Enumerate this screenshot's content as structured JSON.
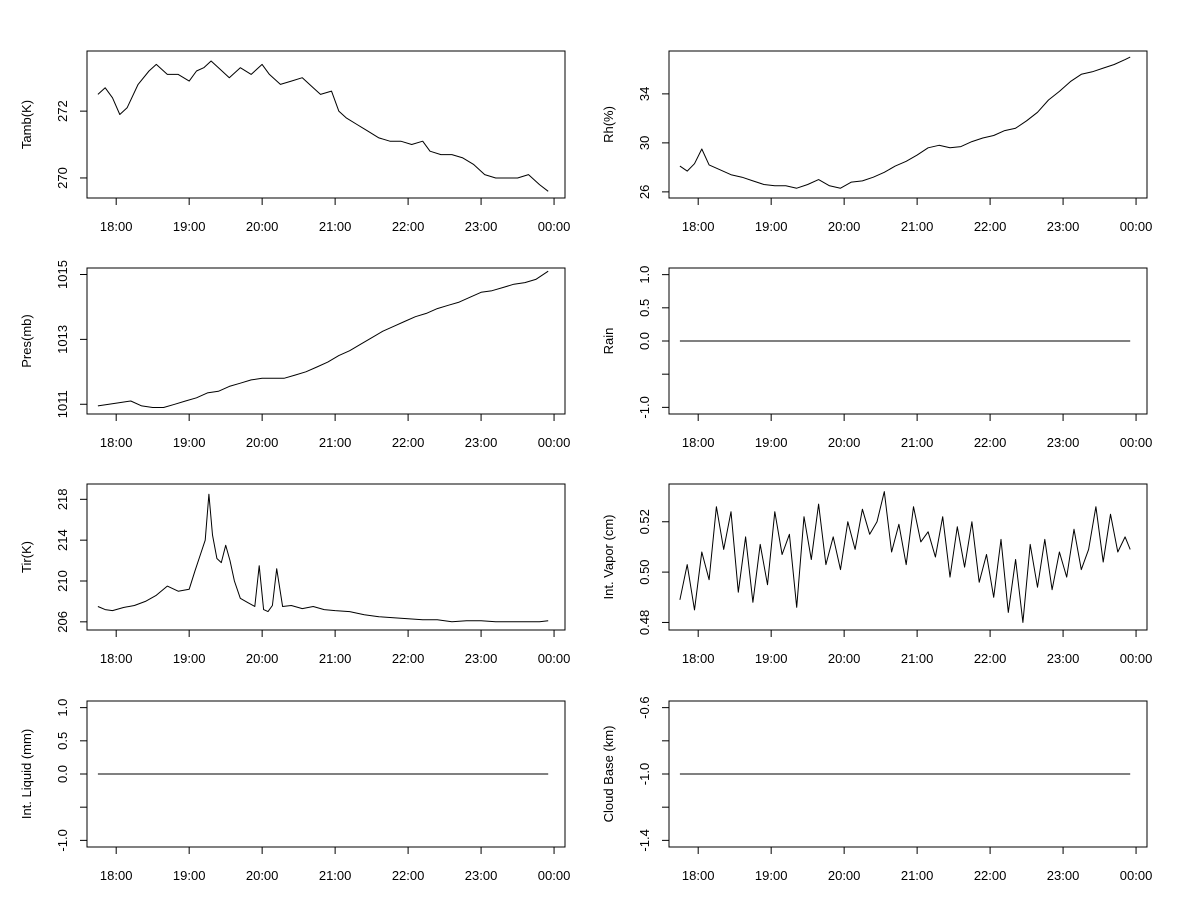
{
  "chart_data": [
    {
      "type": "line",
      "ylabel": "Tamb(K)",
      "xticks": [
        "18:00",
        "19:00",
        "20:00",
        "21:00",
        "22:00",
        "23:00",
        "00:00"
      ],
      "ylim": [
        269.4,
        273.8
      ],
      "yticks": [
        270,
        272
      ],
      "ytick_labels": [
        "270",
        "272"
      ],
      "series": [
        {
          "x_hours": [
            17.75,
            17.85,
            17.95,
            18.05,
            18.15,
            18.3,
            18.45,
            18.55,
            18.7,
            18.85,
            19.0,
            19.1,
            19.2,
            19.3,
            19.45,
            19.55,
            19.7,
            19.85,
            20.0,
            20.1,
            20.25,
            20.4,
            20.55,
            20.7,
            20.8,
            20.95,
            21.05,
            21.15,
            21.3,
            21.45,
            21.6,
            21.75,
            21.9,
            22.05,
            22.2,
            22.3,
            22.45,
            22.6,
            22.75,
            22.9,
            23.05,
            23.2,
            23.35,
            23.5,
            23.65,
            23.8,
            23.92
          ],
          "values": [
            272.5,
            272.7,
            272.4,
            271.9,
            272.1,
            272.8,
            273.2,
            273.4,
            273.1,
            273.1,
            272.9,
            273.2,
            273.3,
            273.5,
            273.2,
            273.0,
            273.3,
            273.1,
            273.4,
            273.1,
            272.8,
            272.9,
            273.0,
            272.7,
            272.5,
            272.6,
            272.0,
            271.8,
            271.6,
            271.4,
            271.2,
            271.1,
            271.1,
            271.0,
            271.1,
            270.8,
            270.7,
            270.7,
            270.6,
            270.4,
            270.1,
            270.0,
            270.0,
            270.0,
            270.1,
            269.8,
            269.6
          ]
        }
      ]
    },
    {
      "type": "line",
      "ylabel": "Rh(%)",
      "xticks": [
        "18:00",
        "19:00",
        "20:00",
        "21:00",
        "22:00",
        "23:00",
        "00:00"
      ],
      "ylim": [
        25.5,
        37.5
      ],
      "yticks": [
        26,
        30,
        34
      ],
      "ytick_labels": [
        "26",
        "30",
        "34"
      ],
      "series": [
        {
          "x_hours": [
            17.75,
            17.85,
            17.95,
            18.05,
            18.15,
            18.3,
            18.45,
            18.6,
            18.75,
            18.9,
            19.05,
            19.2,
            19.35,
            19.5,
            19.65,
            19.8,
            19.95,
            20.1,
            20.25,
            20.4,
            20.55,
            20.7,
            20.85,
            21.0,
            21.15,
            21.3,
            21.45,
            21.6,
            21.75,
            21.9,
            22.05,
            22.2,
            22.35,
            22.5,
            22.65,
            22.8,
            22.95,
            23.1,
            23.25,
            23.4,
            23.55,
            23.7,
            23.85,
            23.92
          ],
          "values": [
            28.1,
            27.7,
            28.3,
            29.5,
            28.2,
            27.8,
            27.4,
            27.2,
            26.9,
            26.6,
            26.5,
            26.5,
            26.3,
            26.6,
            27.0,
            26.5,
            26.3,
            26.8,
            26.9,
            27.2,
            27.6,
            28.1,
            28.5,
            29.0,
            29.6,
            29.8,
            29.6,
            29.7,
            30.1,
            30.4,
            30.6,
            31.0,
            31.2,
            31.8,
            32.5,
            33.5,
            34.2,
            35.0,
            35.6,
            35.8,
            36.1,
            36.4,
            36.8,
            37.0
          ]
        }
      ]
    },
    {
      "type": "line",
      "ylabel": "Pres(mb)",
      "xticks": [
        "18:00",
        "19:00",
        "20:00",
        "21:00",
        "22:00",
        "23:00",
        "00:00"
      ],
      "ylim": [
        1010.7,
        1015.2
      ],
      "yticks": [
        1011,
        1013,
        1015
      ],
      "ytick_labels": [
        "1011",
        "1013",
        "1015"
      ],
      "series": [
        {
          "x_hours": [
            17.75,
            17.9,
            18.05,
            18.2,
            18.35,
            18.5,
            18.65,
            18.8,
            18.95,
            19.1,
            19.25,
            19.4,
            19.55,
            19.7,
            19.85,
            20.0,
            20.15,
            20.3,
            20.45,
            20.6,
            20.75,
            20.9,
            21.05,
            21.2,
            21.35,
            21.5,
            21.65,
            21.8,
            21.95,
            22.1,
            22.25,
            22.4,
            22.55,
            22.7,
            22.85,
            23.0,
            23.15,
            23.3,
            23.45,
            23.6,
            23.75,
            23.92
          ],
          "values": [
            1010.95,
            1011.0,
            1011.05,
            1011.1,
            1010.95,
            1010.9,
            1010.9,
            1011.0,
            1011.1,
            1011.2,
            1011.35,
            1011.4,
            1011.55,
            1011.65,
            1011.75,
            1011.8,
            1011.8,
            1011.8,
            1011.9,
            1012.0,
            1012.15,
            1012.3,
            1012.5,
            1012.65,
            1012.85,
            1013.05,
            1013.25,
            1013.4,
            1013.55,
            1013.7,
            1013.8,
            1013.95,
            1014.05,
            1014.15,
            1014.3,
            1014.45,
            1014.5,
            1014.6,
            1014.7,
            1014.75,
            1014.85,
            1015.1
          ]
        }
      ]
    },
    {
      "type": "line",
      "ylabel": "Rain",
      "xticks": [
        "18:00",
        "19:00",
        "20:00",
        "21:00",
        "22:00",
        "23:00",
        "00:00"
      ],
      "ylim": [
        -1.1,
        1.1
      ],
      "yticks": [
        -1.0,
        -0.5,
        0.0,
        0.5,
        1.0
      ],
      "ytick_labels": [
        "-1.0",
        "",
        "0.0",
        "0.5",
        "1.0"
      ],
      "series": [
        {
          "x_hours": [
            17.75,
            23.92
          ],
          "values": [
            0.0,
            0.0
          ]
        }
      ]
    },
    {
      "type": "line",
      "ylabel": "Tir(K)",
      "xticks": [
        "18:00",
        "19:00",
        "20:00",
        "21:00",
        "22:00",
        "23:00",
        "00:00"
      ],
      "ylim": [
        205.2,
        219.5
      ],
      "yticks": [
        206,
        210,
        214,
        218
      ],
      "ytick_labels": [
        "206",
        "210",
        "214",
        "218"
      ],
      "series": [
        {
          "x_hours": [
            17.75,
            17.85,
            17.95,
            18.1,
            18.25,
            18.4,
            18.55,
            18.7,
            18.85,
            19.0,
            19.08,
            19.15,
            19.22,
            19.27,
            19.32,
            19.38,
            19.44,
            19.5,
            19.56,
            19.62,
            19.7,
            19.8,
            19.9,
            19.96,
            20.02,
            20.08,
            20.14,
            20.2,
            20.28,
            20.4,
            20.55,
            20.7,
            20.85,
            21.0,
            21.2,
            21.4,
            21.6,
            21.8,
            22.0,
            22.2,
            22.4,
            22.6,
            22.8,
            23.0,
            23.2,
            23.4,
            23.6,
            23.8,
            23.92
          ],
          "values": [
            207.5,
            207.2,
            207.1,
            207.4,
            207.6,
            208.0,
            208.6,
            209.5,
            209.0,
            209.2,
            211.0,
            212.5,
            214.0,
            218.5,
            214.5,
            212.2,
            211.8,
            213.5,
            212.0,
            210.0,
            208.3,
            207.9,
            207.5,
            211.5,
            207.2,
            207.0,
            207.6,
            211.2,
            207.5,
            207.6,
            207.3,
            207.5,
            207.2,
            207.1,
            207.0,
            206.7,
            206.5,
            206.4,
            206.3,
            206.2,
            206.2,
            206.0,
            206.1,
            206.1,
            206.0,
            206.0,
            206.0,
            206.0,
            206.1
          ]
        }
      ]
    },
    {
      "type": "line",
      "ylabel": "Int. Vapor (cm)",
      "xticks": [
        "18:00",
        "19:00",
        "20:00",
        "21:00",
        "22:00",
        "23:00",
        "00:00"
      ],
      "ylim": [
        0.477,
        0.535
      ],
      "yticks": [
        0.48,
        0.5,
        0.52
      ],
      "ytick_labels": [
        "0.48",
        "0.50",
        "0.52"
      ],
      "series": [
        {
          "x_hours": [
            17.75,
            17.85,
            17.95,
            18.05,
            18.15,
            18.25,
            18.35,
            18.45,
            18.55,
            18.65,
            18.75,
            18.85,
            18.95,
            19.05,
            19.15,
            19.25,
            19.35,
            19.45,
            19.55,
            19.65,
            19.75,
            19.85,
            19.95,
            20.05,
            20.15,
            20.25,
            20.35,
            20.45,
            20.55,
            20.65,
            20.75,
            20.85,
            20.95,
            21.05,
            21.15,
            21.25,
            21.35,
            21.45,
            21.55,
            21.65,
            21.75,
            21.85,
            21.95,
            22.05,
            22.15,
            22.25,
            22.35,
            22.45,
            22.55,
            22.65,
            22.75,
            22.85,
            22.95,
            23.05,
            23.15,
            23.25,
            23.35,
            23.45,
            23.55,
            23.65,
            23.75,
            23.85,
            23.92
          ],
          "values": [
            0.489,
            0.503,
            0.485,
            0.508,
            0.497,
            0.526,
            0.509,
            0.524,
            0.492,
            0.514,
            0.488,
            0.511,
            0.495,
            0.524,
            0.507,
            0.515,
            0.486,
            0.522,
            0.505,
            0.527,
            0.503,
            0.514,
            0.501,
            0.52,
            0.509,
            0.525,
            0.515,
            0.52,
            0.532,
            0.508,
            0.519,
            0.503,
            0.526,
            0.512,
            0.516,
            0.506,
            0.522,
            0.498,
            0.518,
            0.502,
            0.52,
            0.496,
            0.507,
            0.49,
            0.513,
            0.484,
            0.505,
            0.48,
            0.511,
            0.494,
            0.513,
            0.493,
            0.508,
            0.498,
            0.517,
            0.501,
            0.509,
            0.526,
            0.504,
            0.523,
            0.508,
            0.514,
            0.509
          ]
        }
      ]
    },
    {
      "type": "line",
      "ylabel": "Int. Liquid (mm)",
      "xticks": [
        "18:00",
        "19:00",
        "20:00",
        "21:00",
        "22:00",
        "23:00",
        "00:00"
      ],
      "ylim": [
        -1.1,
        1.1
      ],
      "yticks": [
        -1.0,
        -0.5,
        0.0,
        0.5,
        1.0
      ],
      "ytick_labels": [
        "-1.0",
        "",
        "0.0",
        "0.5",
        "1.0"
      ],
      "series": [
        {
          "x_hours": [
            17.75,
            23.92
          ],
          "values": [
            0.0,
            0.0
          ]
        }
      ]
    },
    {
      "type": "line",
      "ylabel": "Cloud Base (km)",
      "xticks": [
        "18:00",
        "19:00",
        "20:00",
        "21:00",
        "22:00",
        "23:00",
        "00:00"
      ],
      "ylim": [
        -1.44,
        -0.56
      ],
      "yticks": [
        -1.4,
        -1.2,
        -1.0,
        -0.8,
        -0.6
      ],
      "ytick_labels": [
        "-1.4",
        "",
        "-1.0",
        "",
        "-0.6"
      ],
      "series": [
        {
          "x_hours": [
            17.75,
            23.92
          ],
          "values": [
            -1.0,
            -1.0
          ]
        }
      ]
    }
  ]
}
